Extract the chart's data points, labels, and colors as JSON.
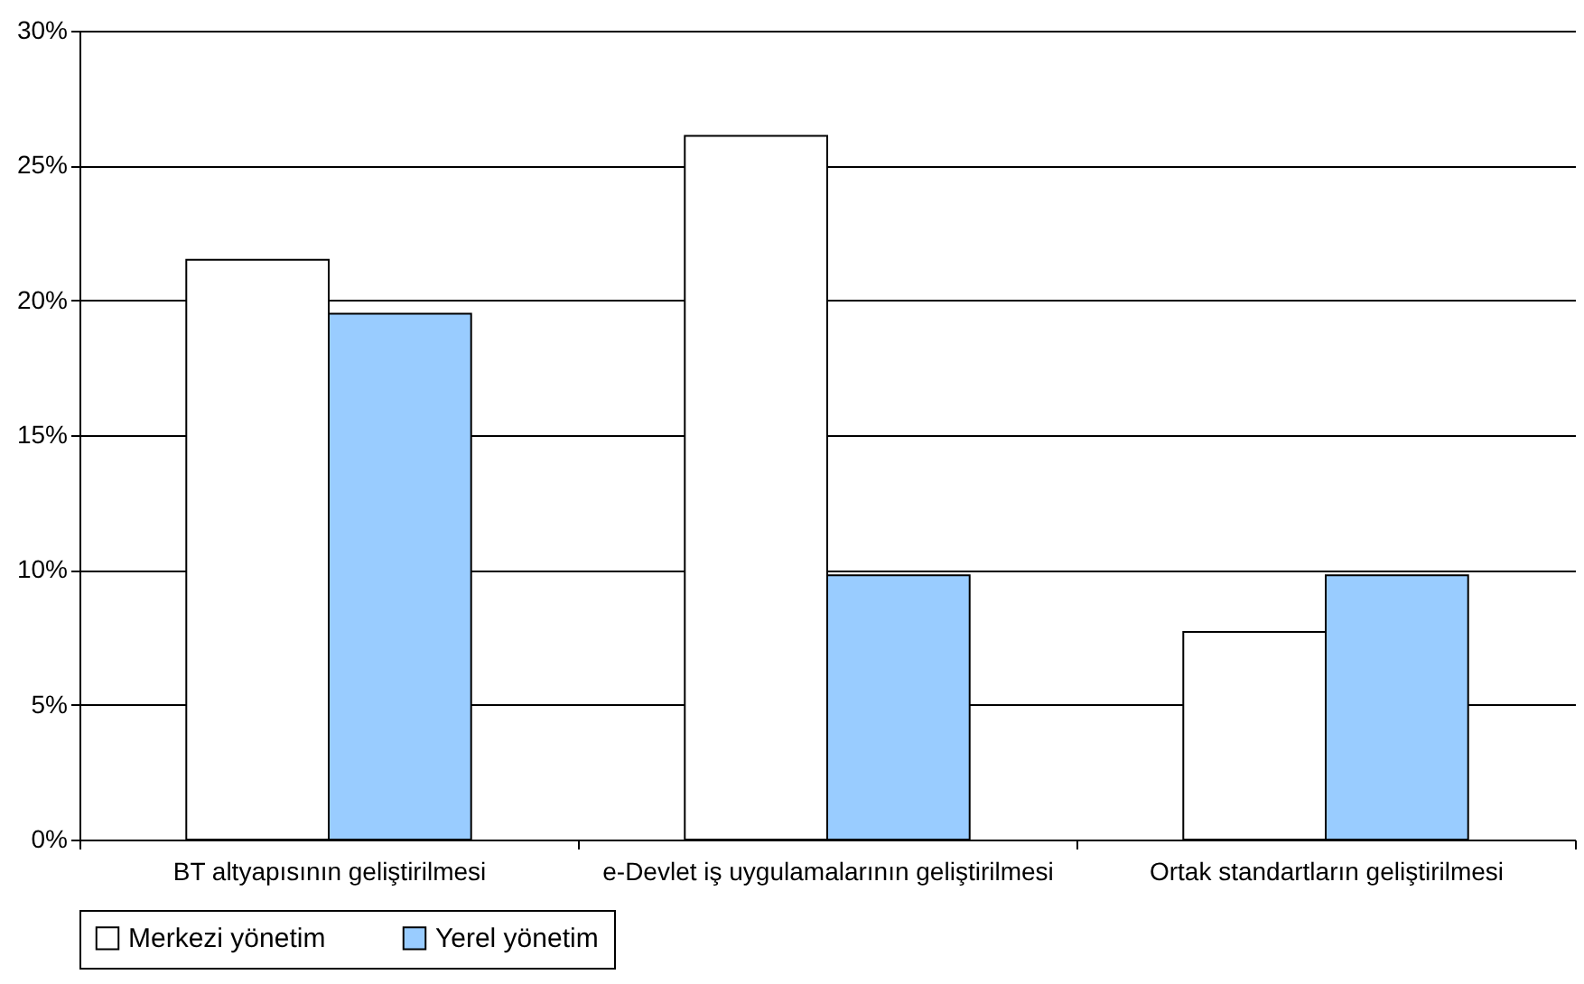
{
  "chart_data": {
    "type": "bar",
    "categories": [
      "BT altyapısının geliştirilmesi",
      "e-Devlet iş uygulamalarının geliştirilmesi",
      "Ortak standartların geliştirilmesi"
    ],
    "series": [
      {
        "name": "Merkezi yönetim",
        "color": "#ffffff",
        "values": [
          21.5,
          26.1,
          7.7
        ]
      },
      {
        "name": "Yerel yönetim",
        "color": "#99ccff",
        "values": [
          19.5,
          9.8,
          9.8
        ]
      }
    ],
    "ylim": [
      0,
      30
    ],
    "yticks": [
      {
        "value": 0,
        "label": "0%"
      },
      {
        "value": 5,
        "label": "5%"
      },
      {
        "value": 10,
        "label": "10%"
      },
      {
        "value": 15,
        "label": "15%"
      },
      {
        "value": 20,
        "label": "20%"
      },
      {
        "value": 25,
        "label": "25%"
      },
      {
        "value": 30,
        "label": "30%"
      }
    ],
    "grid": "y",
    "legend": "bottom"
  }
}
